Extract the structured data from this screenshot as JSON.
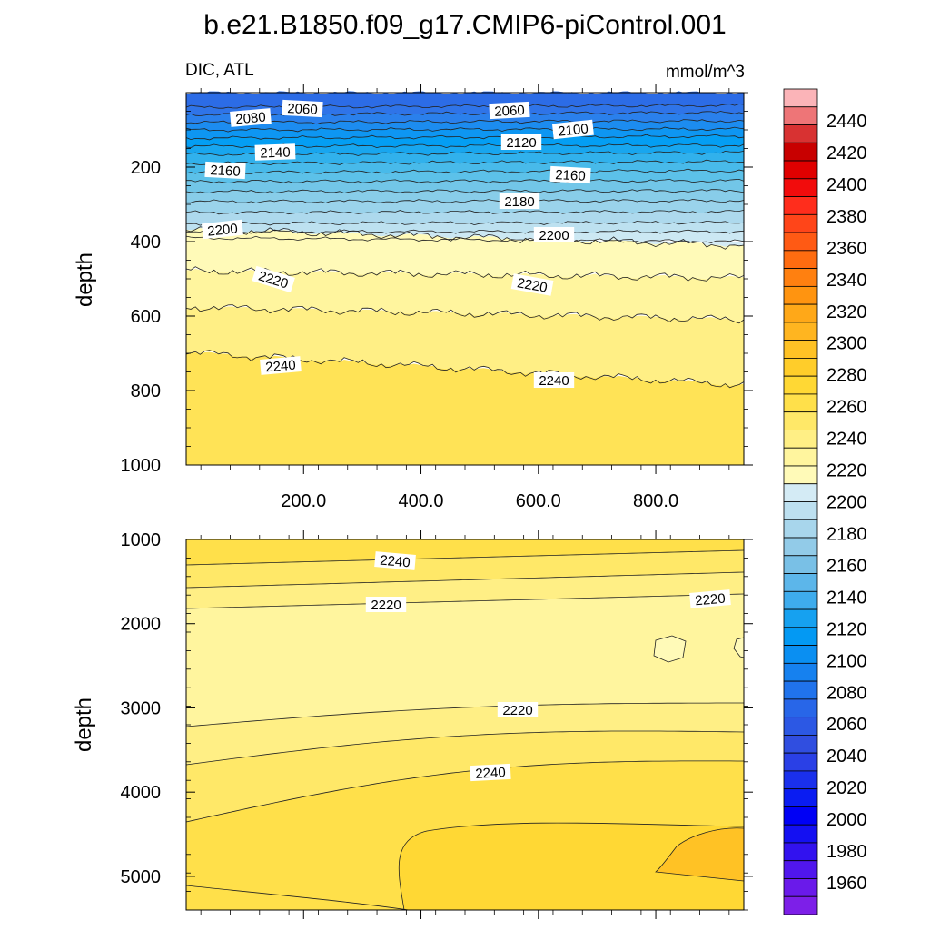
{
  "title": "b.e21.B1850.f09_g17.CMIP6-piControl.001",
  "chart_data": [
    {
      "type": "contour",
      "panel": "upper",
      "left_label": "DIC, ATL",
      "right_label": "mmol/m^3",
      "ylabel": "depth",
      "ylim": [
        1000,
        0
      ],
      "xlim": [
        0,
        950
      ],
      "y_ticks": [
        "200",
        "400",
        "600",
        "800",
        "1000"
      ],
      "x_ticks": [
        "200.0",
        "400.0",
        "600.0",
        "800.0"
      ],
      "contour_levels": [
        2060,
        2080,
        2100,
        2120,
        2140,
        2160,
        2180,
        2200,
        2220,
        2240
      ],
      "contour_labels": [
        "2080",
        "2060",
        "2060",
        "2100",
        "2120",
        "2140",
        "2160",
        "2160",
        "2180",
        "2200",
        "2200",
        "2220",
        "2220",
        "2240",
        "2240"
      ]
    },
    {
      "type": "contour",
      "panel": "lower",
      "ylabel": "depth",
      "ylim": [
        5400,
        1000
      ],
      "xlim": [
        0,
        950
      ],
      "y_ticks": [
        "1000",
        "2000",
        "3000",
        "4000",
        "5000"
      ],
      "contour_levels": [
        2220,
        2240,
        2260
      ],
      "contour_labels": [
        "2240",
        "2220",
        "2220",
        "2220",
        "2240"
      ]
    }
  ],
  "colorbar": {
    "labels": [
      "2440",
      "2420",
      "2400",
      "2380",
      "2360",
      "2340",
      "2320",
      "2300",
      "2280",
      "2260",
      "2240",
      "2220",
      "2200",
      "2180",
      "2160",
      "2140",
      "2120",
      "2100",
      "2080",
      "2060",
      "2040",
      "2020",
      "2000",
      "1980",
      "1960"
    ],
    "colors": [
      "#fbb4b8",
      "#ee7577",
      "#d83232",
      "#c80000",
      "#e00000",
      "#f20c0c",
      "#ff2d1c",
      "#ff4519",
      "#ff5a14",
      "#ff6c10",
      "#ff8010",
      "#ff9410",
      "#ffa818",
      "#ffb520",
      "#ffc225",
      "#ffcd2a",
      "#ffd834",
      "#ffe04a",
      "#ffe868",
      "#ffef85",
      "#fff59e",
      "#fffab8",
      "#d4ebf5",
      "#bde0f0",
      "#a8d6ec",
      "#92cbe8",
      "#79c0e6",
      "#5cb6ea",
      "#3eaced",
      "#16a1f0",
      "#0399f3",
      "#0a8ff2",
      "#1681ef",
      "#2073ec",
      "#2866e8",
      "#2c58e4",
      "#304ee0",
      "#2a40e6",
      "#1a30ec",
      "#0a1cf2",
      "#0000f5",
      "#1410f2",
      "#3212ef",
      "#5016ed",
      "#6a1aea",
      "#7d1fe8"
    ]
  }
}
